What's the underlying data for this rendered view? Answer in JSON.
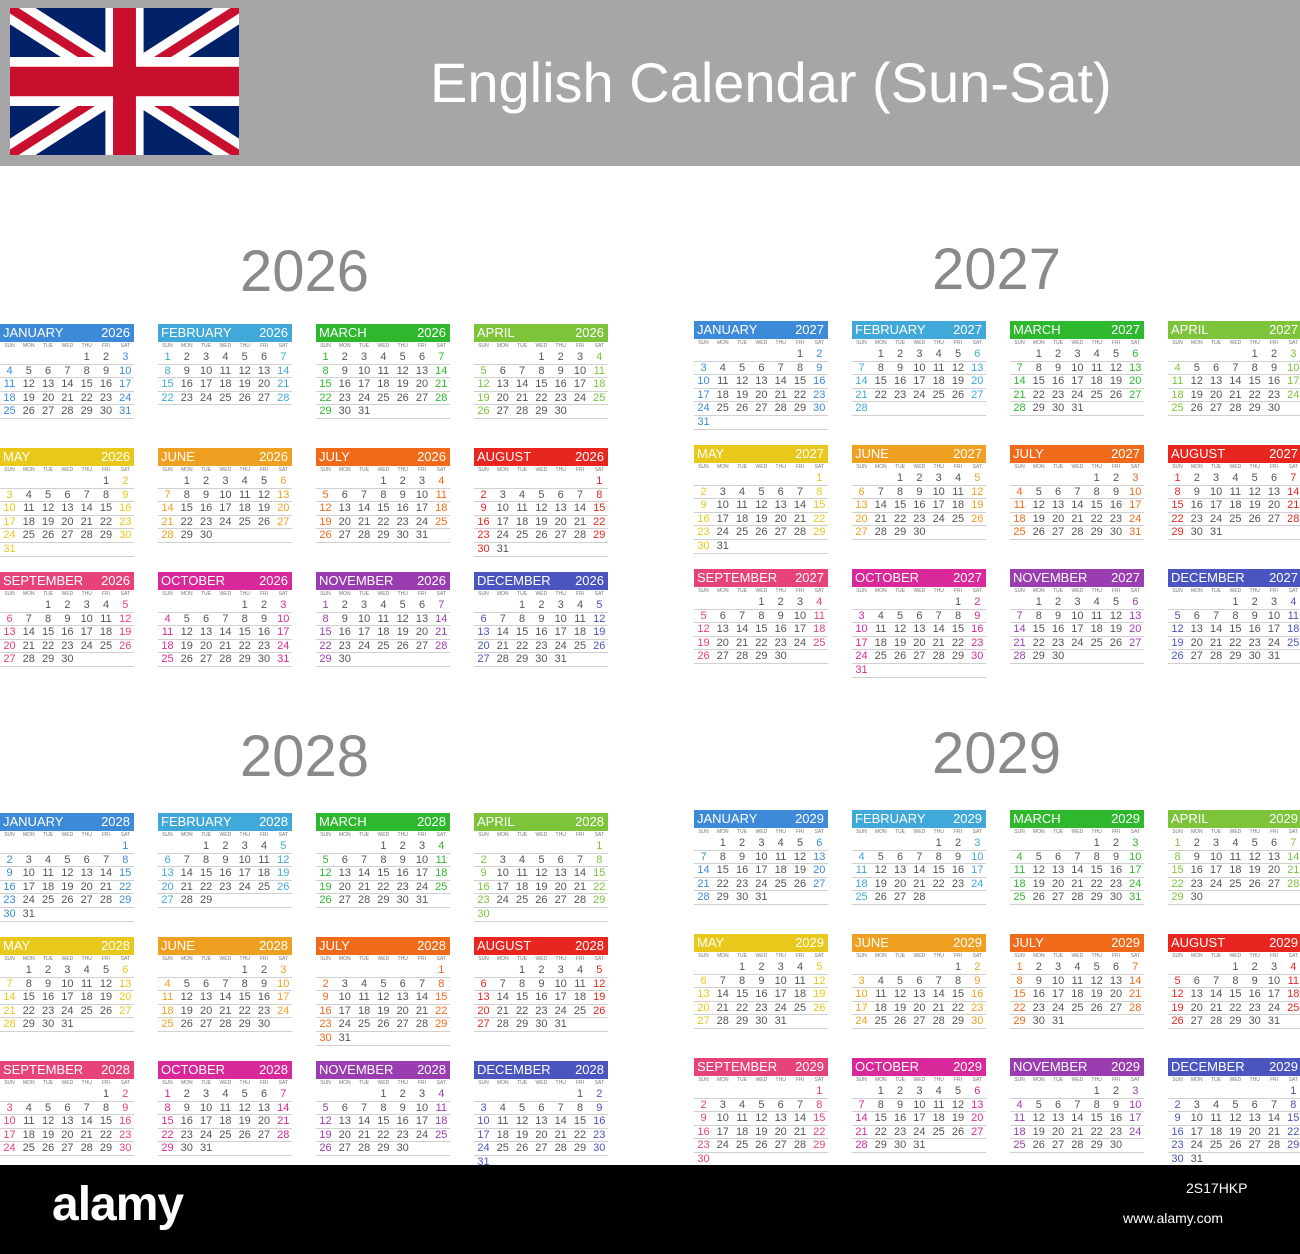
{
  "title": "English Calendar (Sun-Sat)",
  "day_names": [
    "SUN",
    "MON",
    "TUE",
    "WED",
    "THU",
    "FRI",
    "SAT"
  ],
  "month_names": [
    "JANUARY",
    "FEBRUARY",
    "MARCH",
    "APRIL",
    "MAY",
    "JUNE",
    "JULY",
    "AUGUST",
    "SEPTEMBER",
    "OCTOBER",
    "NOVEMBER",
    "DECEMBER"
  ],
  "month_colors": [
    "#3d8ad9",
    "#41a9d9",
    "#2eb82e",
    "#7dc43b",
    "#e8c81a",
    "#f0a020",
    "#f06a1a",
    "#e8251f",
    "#e8427a",
    "#d8289a",
    "#9a3db0",
    "#4a55c0"
  ],
  "years": [
    "2026",
    "2027",
    "2028",
    "2029"
  ],
  "flag": {
    "blue": "#012169",
    "red": "#c8102e",
    "white": "#ffffff"
  },
  "footer": {
    "brand": "alamy",
    "image_id": "2S17HKP",
    "url": "www.alamy.com"
  }
}
